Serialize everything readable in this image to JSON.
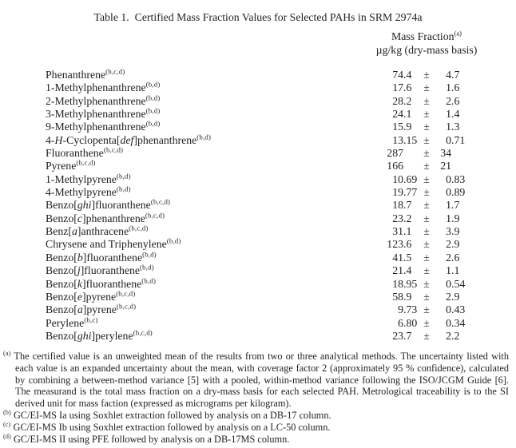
{
  "page": {
    "background": "#ffffff",
    "text_color": "#1f1f1f"
  },
  "title": "Table 1.  Certified Mass Fraction Values for Selected PAHs in SRM 2974a",
  "column_header": {
    "title": "Mass Fraction",
    "title_sup": "(a)",
    "units": "µg/kg (dry-mass basis)"
  },
  "table": {
    "plus_minus": "±",
    "rows": [
      {
        "name": [
          [
            "Phenanthrene",
            false
          ]
        ],
        "sup": "(b,c,d)",
        "value": "74.4",
        "uncertainty": "4.7"
      },
      {
        "name": [
          [
            "1-Methylphenanthrene",
            false
          ]
        ],
        "sup": "(b,d)",
        "value": "17.6",
        "uncertainty": "1.6"
      },
      {
        "name": [
          [
            "2-Methylphenanthrene",
            false
          ]
        ],
        "sup": "(b,d)",
        "value": "28.2",
        "uncertainty": "2.6"
      },
      {
        "name": [
          [
            "3-Methylphenanthrene",
            false
          ]
        ],
        "sup": "(b,d)",
        "value": "24.1",
        "uncertainty": "1.4"
      },
      {
        "name": [
          [
            "9-Methylphenanthrene",
            false
          ]
        ],
        "sup": "(b,d)",
        "value": "15.9",
        "uncertainty": "1.3"
      },
      {
        "name": [
          [
            "4-",
            false
          ],
          [
            "H",
            true
          ],
          [
            "-Cyclopenta[",
            false
          ],
          [
            "def",
            true
          ],
          [
            "]phenanthrene",
            false
          ]
        ],
        "sup": "(b,d)",
        "value": "13.15",
        "uncertainty": "0.71"
      },
      {
        "name": [
          [
            "Fluoranthene",
            false
          ]
        ],
        "sup": "(b,c,d)",
        "value": "287",
        "uncertainty": "34"
      },
      {
        "name": [
          [
            "Pyrene",
            false
          ]
        ],
        "sup": "(b,c,d)",
        "value": "166",
        "uncertainty": "21"
      },
      {
        "name": [
          [
            "1-Methylpyrene",
            false
          ]
        ],
        "sup": "(b,d)",
        "value": "10.69",
        "uncertainty": "0.83"
      },
      {
        "name": [
          [
            "4-Methylpyrene",
            false
          ]
        ],
        "sup": "(b,d)",
        "value": "19.77",
        "uncertainty": "0.89"
      },
      {
        "name": [
          [
            "Benzo[",
            false
          ],
          [
            "ghi",
            true
          ],
          [
            "]fluoranthene",
            false
          ]
        ],
        "sup": "(b,c,d)",
        "value": "18.7",
        "uncertainty": "1.7"
      },
      {
        "name": [
          [
            "Benzo[",
            false
          ],
          [
            "c",
            true
          ],
          [
            "]phenanthrene",
            false
          ]
        ],
        "sup": "(b,c,d)",
        "value": "23.2",
        "uncertainty": "1.9"
      },
      {
        "name": [
          [
            "Benz[",
            false
          ],
          [
            "a",
            true
          ],
          [
            "]anthracene",
            false
          ]
        ],
        "sup": "(b,c,d)",
        "value": "31.1",
        "uncertainty": "3.9"
      },
      {
        "name": [
          [
            "Chrysene and Triphenylene",
            false
          ]
        ],
        "sup": "(b,d)",
        "value": "123.6",
        "uncertainty": "2.9"
      },
      {
        "name": [
          [
            "Benzo[",
            false
          ],
          [
            "b",
            true
          ],
          [
            "]fluoranthene",
            false
          ]
        ],
        "sup": "(b,d)",
        "value": "41.5",
        "uncertainty": "2.6"
      },
      {
        "name": [
          [
            "Benzo[",
            false
          ],
          [
            "j",
            true
          ],
          [
            "]fluoranthene",
            false
          ]
        ],
        "sup": "(b,d)",
        "value": "21.4",
        "uncertainty": "1.1"
      },
      {
        "name": [
          [
            "Benzo[",
            false
          ],
          [
            "k",
            true
          ],
          [
            "]fluoranthene",
            false
          ]
        ],
        "sup": "(b,d)",
        "value": "18.95",
        "uncertainty": "0.54"
      },
      {
        "name": [
          [
            "Benzo[",
            false
          ],
          [
            "e",
            true
          ],
          [
            "]pyrene",
            false
          ]
        ],
        "sup": "(b,c,d)",
        "value": "58.9",
        "uncertainty": "2.9"
      },
      {
        "name": [
          [
            "Benzo[",
            false
          ],
          [
            "a",
            true
          ],
          [
            "]pyrene",
            false
          ]
        ],
        "sup": "(b,c,d)",
        "value": "9.73",
        "uncertainty": "0.43"
      },
      {
        "name": [
          [
            "Perylene",
            false
          ]
        ],
        "sup": "(b,c)",
        "value": "6.80",
        "uncertainty": "0.34"
      },
      {
        "name": [
          [
            "Benzo[",
            false
          ],
          [
            "ghi",
            true
          ],
          [
            "]perylene",
            false
          ]
        ],
        "sup": "(b,c,d)",
        "value": "23.7",
        "uncertainty": "2.2"
      }
    ]
  },
  "footnotes": [
    {
      "marker": "(a)",
      "text": "The certified value is an unweighted mean of the results from two or three analytical methods.  The uncertainty listed with each value is an expanded uncertainty about the mean, with coverage factor 2 (approximately 95 % confidence), calculated by combining a between-method variance [5] with a pooled, within-method variance following the ISO/JCGM Guide [6].  The measurand is the total mass fraction on a dry-mass basis for each selected PAH.  Metrological traceability is to the SI derived unit for mass faction (expressed as micrograms per kilogram)."
    },
    {
      "marker": "(b)",
      "text": "GC/EI-MS Ia using Soxhlet extraction followed by analysis on a DB-17 column."
    },
    {
      "marker": "(c)",
      "text": "GC/EI-MS Ib using Soxhlet extraction followed by analysis on a LC-50 column."
    },
    {
      "marker": "(d)",
      "text": "GC/EI-MS II using PFE followed by analysis on a DB-17MS column."
    }
  ]
}
